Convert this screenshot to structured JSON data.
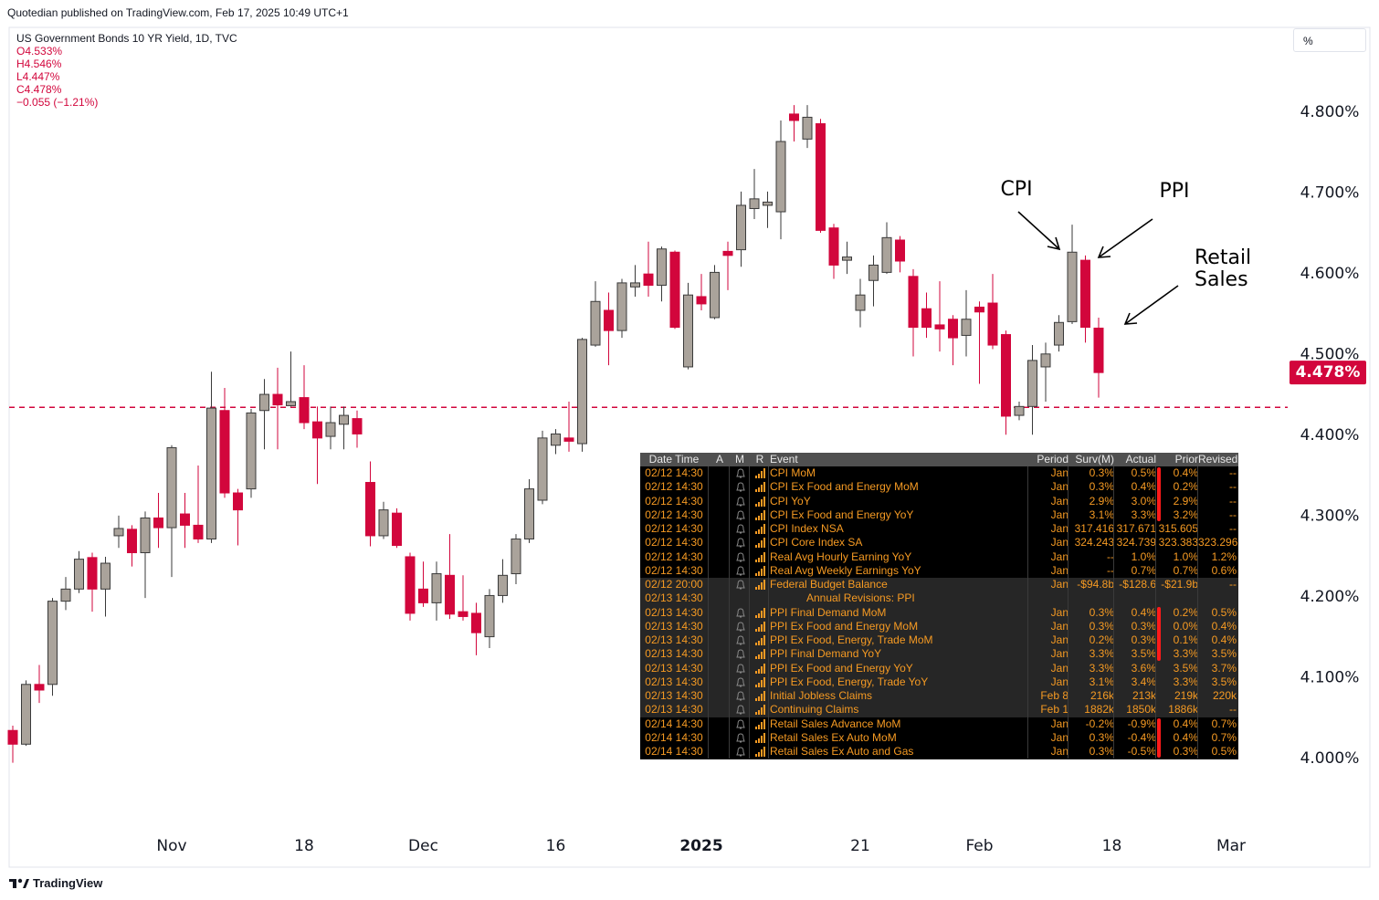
{
  "header": {
    "published": "Quotedian published on TradingView.com, Feb 17, 2025 10:49 UTC+1",
    "symbol": "US Government Bonds 10 YR Yield, 1D, TVC",
    "legend_values": [
      "O4.533%",
      "H4.546%",
      "L4.447%",
      "C4.478%",
      "−0.055 (−1.21%)"
    ],
    "scale_button": "%",
    "footer": "TradingView"
  },
  "chart_data": {
    "type": "candlestick",
    "up_color": "#aaa39b",
    "up_border": "#3a3a3a",
    "down_color": "#d2063c",
    "categories": [
      null,
      null,
      null,
      null,
      null,
      null,
      null,
      null,
      null,
      null,
      null,
      null,
      "Nov",
      null,
      null,
      null,
      null,
      null,
      null,
      null,
      null,
      null,
      "18",
      null,
      null,
      null,
      null,
      null,
      null,
      null,
      null,
      "Dec",
      null,
      null,
      null,
      null,
      null,
      null,
      null,
      null,
      null,
      "16",
      null,
      null,
      null,
      null,
      null,
      null,
      null,
      null,
      null,
      null,
      "2025",
      null,
      null,
      null,
      null,
      null,
      null,
      null,
      null,
      null,
      null,
      null,
      "21",
      null,
      null,
      null,
      null,
      null,
      null,
      null,
      null,
      "Feb",
      null,
      null,
      null,
      null,
      null,
      null,
      null,
      null,
      null,
      "18",
      null,
      null,
      null,
      null,
      null,
      null,
      null,
      null,
      "Mar"
    ],
    "open": [
      4.035,
      4.018,
      4.092,
      4.092,
      4.195,
      4.21,
      4.249,
      4.21,
      4.276,
      4.284,
      4.255,
      4.298,
      4.286,
      4.303,
      4.289,
      4.272,
      4.431,
      4.329,
      4.334,
      4.431,
      4.451,
      4.437,
      4.447,
      4.417,
      4.399,
      4.414,
      4.421,
      4.342,
      4.276,
      4.304,
      4.25,
      4.21,
      4.193,
      4.227,
      4.182,
      4.18,
      4.151,
      4.202,
      4.229,
      4.272,
      4.32,
      4.388,
      4.397,
      4.39,
      4.512,
      4.555,
      4.53,
      4.584,
      4.6,
      4.586,
      4.627,
      4.485,
      4.572,
      4.546,
      4.628,
      4.63,
      4.681,
      4.685,
      4.677,
      4.798,
      4.767,
      4.786,
      4.657,
      4.617,
      4.555,
      4.592,
      4.602,
      4.642,
      4.597,
      4.557,
      4.537,
      4.544,
      4.524,
      4.559,
      4.564,
      4.525,
      4.425,
      4.436,
      4.485,
      4.512,
      4.541,
      4.617,
      4.533,
      null,
      null,
      null,
      null,
      null,
      null,
      null,
      null,
      null,
      null
    ],
    "high": [
      4.041,
      4.097,
      4.116,
      4.199,
      4.225,
      4.257,
      4.255,
      4.25,
      4.301,
      4.289,
      4.306,
      4.329,
      4.388,
      4.329,
      4.363,
      4.479,
      4.459,
      4.334,
      4.433,
      4.47,
      4.484,
      4.504,
      4.487,
      4.436,
      4.436,
      4.436,
      4.431,
      4.368,
      4.318,
      4.31,
      4.255,
      4.244,
      4.244,
      4.278,
      4.227,
      4.193,
      4.21,
      4.247,
      4.278,
      4.346,
      4.406,
      4.408,
      4.442,
      4.521,
      4.591,
      4.577,
      4.594,
      4.611,
      4.64,
      4.634,
      4.629,
      4.589,
      4.6,
      4.611,
      4.64,
      4.702,
      4.73,
      4.702,
      4.79,
      4.809,
      4.809,
      4.792,
      4.662,
      4.64,
      4.594,
      4.623,
      4.664,
      4.647,
      4.606,
      4.577,
      4.591,
      4.549,
      4.58,
      4.566,
      4.6,
      4.53,
      4.442,
      4.512,
      4.515,
      4.549,
      4.661,
      4.623,
      4.546,
      null,
      null,
      null,
      null,
      null,
      null,
      null,
      null,
      null,
      null
    ],
    "low": [
      3.995,
      4.016,
      4.069,
      4.078,
      4.184,
      4.205,
      4.182,
      4.176,
      4.261,
      4.238,
      4.199,
      4.261,
      4.225,
      4.261,
      4.267,
      4.267,
      4.323,
      4.264,
      4.323,
      4.383,
      4.383,
      4.436,
      4.408,
      4.34,
      4.383,
      4.383,
      4.385,
      4.263,
      4.272,
      4.261,
      4.171,
      4.188,
      4.171,
      4.173,
      4.171,
      4.128,
      4.137,
      4.193,
      4.216,
      4.267,
      4.315,
      4.377,
      4.38,
      4.38,
      4.51,
      4.487,
      4.521,
      4.572,
      4.572,
      4.566,
      4.532,
      4.482,
      4.555,
      4.544,
      4.58,
      4.609,
      4.668,
      4.657,
      4.643,
      4.764,
      4.756,
      4.651,
      4.594,
      4.6,
      4.534,
      4.56,
      4.6,
      4.602,
      4.498,
      4.521,
      4.504,
      4.487,
      4.498,
      4.464,
      4.507,
      4.401,
      4.419,
      4.401,
      4.442,
      4.504,
      4.538,
      4.515,
      4.447,
      null,
      null,
      null,
      null,
      null,
      null,
      null,
      null,
      null,
      null
    ],
    "close": [
      4.018,
      4.092,
      4.085,
      4.195,
      4.21,
      4.247,
      4.21,
      4.242,
      4.285,
      4.255,
      4.298,
      4.286,
      4.385,
      4.289,
      4.272,
      4.434,
      4.329,
      4.308,
      4.428,
      4.451,
      4.438,
      4.442,
      4.416,
      4.397,
      4.416,
      4.425,
      4.402,
      4.276,
      4.308,
      4.264,
      4.18,
      4.193,
      4.229,
      4.179,
      4.176,
      4.156,
      4.202,
      4.227,
      4.272,
      4.334,
      4.397,
      4.402,
      4.393,
      4.519,
      4.566,
      4.53,
      4.589,
      4.589,
      4.586,
      4.631,
      4.534,
      4.574,
      4.563,
      4.602,
      4.623,
      4.685,
      4.693,
      4.689,
      4.764,
      4.79,
      4.794,
      4.654,
      4.611,
      4.621,
      4.574,
      4.611,
      4.645,
      4.616,
      4.534,
      4.534,
      4.532,
      4.521,
      4.544,
      4.553,
      4.512,
      4.424,
      4.436,
      4.493,
      4.501,
      4.54,
      4.627,
      4.534,
      4.478,
      null,
      null,
      null,
      null,
      null,
      null,
      null,
      null,
      null,
      null
    ],
    "ylim": [
      3.911,
      4.877
    ],
    "yticks": [
      {
        "value": 4.0,
        "label": "4.000%"
      },
      {
        "value": 4.1,
        "label": "4.100%"
      },
      {
        "value": 4.2,
        "label": "4.200%"
      },
      {
        "value": 4.3,
        "label": "4.300%"
      },
      {
        "value": 4.4,
        "label": "4.400%"
      },
      {
        "value": 4.5,
        "label": "4.500%"
      },
      {
        "value": 4.6,
        "label": "4.600%"
      },
      {
        "value": 4.7,
        "label": "4.700%"
      },
      {
        "value": 4.8,
        "label": "4.800%"
      }
    ],
    "grid": false,
    "reference_line": {
      "value": 4.435,
      "color": "#d2063c"
    },
    "last_price": {
      "value": 4.478,
      "label": "4.478%"
    }
  },
  "annotations": [
    "CPI",
    "PPI",
    "Retail Sales"
  ],
  "table": {
    "columns": [
      "Date Time",
      "A",
      "M",
      "R",
      "Event",
      "Period",
      "Surv(M)",
      "Actual",
      "Prior",
      "Revised"
    ],
    "rows": [
      {
        "time": "02/12 14:30",
        "event": "CPI MoM",
        "period": "Jan",
        "survey": "0.3%",
        "actual": "0.5%",
        "prior": "0.4%",
        "revised": "--"
      },
      {
        "time": "02/12 14:30",
        "event": "CPI Ex Food and Energy MoM",
        "period": "Jan",
        "survey": "0.3%",
        "actual": "0.4%",
        "prior": "0.2%",
        "revised": "--"
      },
      {
        "time": "02/12 14:30",
        "event": "CPI YoY",
        "period": "Jan",
        "survey": "2.9%",
        "actual": "3.0%",
        "prior": "2.9%",
        "revised": "--"
      },
      {
        "time": "02/12 14:30",
        "event": "CPI Ex Food and Energy YoY",
        "period": "Jan",
        "survey": "3.1%",
        "actual": "3.3%",
        "prior": "3.2%",
        "revised": "--"
      },
      {
        "time": "02/12 14:30",
        "event": "CPI Index NSA",
        "period": "Jan",
        "survey": "317.416",
        "actual": "317.671",
        "prior": "315.605",
        "revised": "--"
      },
      {
        "time": "02/12 14:30",
        "event": "CPI Core Index SA",
        "period": "Jan",
        "survey": "324.243",
        "actual": "324.739",
        "prior": "323.383",
        "revised": "323.296"
      },
      {
        "time": "02/12 14:30",
        "event": "Real Avg Hourly Earning YoY",
        "period": "Jan",
        "survey": "--",
        "actual": "1.0%",
        "prior": "1.0%",
        "revised": "1.2%"
      },
      {
        "time": "02/12 14:30",
        "event": "Real Avg Weekly Earnings YoY",
        "period": "Jan",
        "survey": "--",
        "actual": "0.7%",
        "prior": "0.7%",
        "revised": "0.6%"
      },
      {
        "time": "02/12 20:00",
        "event": "Federal Budget Balance",
        "period": "Jan",
        "survey": "-$94.8b",
        "actual": "-$128.6",
        "prior": "-$21.9b",
        "revised": "--"
      },
      {
        "time": "02/13 14:30",
        "event": "Annual Revisions: PPI"
      },
      {
        "time": "02/13 14:30",
        "event": "PPI Final Demand MoM",
        "period": "Jan",
        "survey": "0.3%",
        "actual": "0.4%",
        "prior": "0.2%",
        "revised": "0.5%"
      },
      {
        "time": "02/13 14:30",
        "event": "PPI Ex Food and Energy MoM",
        "period": "Jan",
        "survey": "0.3%",
        "actual": "0.3%",
        "prior": "0.0%",
        "revised": "0.4%"
      },
      {
        "time": "02/13 14:30",
        "event": "PPI Ex Food, Energy, Trade MoM",
        "period": "Jan",
        "survey": "0.2%",
        "actual": "0.3%",
        "prior": "0.1%",
        "revised": "0.4%"
      },
      {
        "time": "02/13 14:30",
        "event": "PPI Final Demand YoY",
        "period": "Jan",
        "survey": "3.3%",
        "actual": "3.5%",
        "prior": "3.3%",
        "revised": "3.5%"
      },
      {
        "time": "02/13 14:30",
        "event": "PPI Ex Food and Energy YoY",
        "period": "Jan",
        "survey": "3.3%",
        "actual": "3.6%",
        "prior": "3.5%",
        "revised": "3.7%"
      },
      {
        "time": "02/13 14:30",
        "event": "PPI Ex Food, Energy, Trade YoY",
        "period": "Jan",
        "survey": "3.1%",
        "actual": "3.4%",
        "prior": "3.3%",
        "revised": "3.5%"
      },
      {
        "time": "02/13 14:30",
        "event": "Initial Jobless Claims",
        "period": "Feb 8",
        "survey": "216k",
        "actual": "213k",
        "prior": "219k",
        "revised": "220k"
      },
      {
        "time": "02/13 14:30",
        "event": "Continuing Claims",
        "period": "Feb 1",
        "survey": "1882k",
        "actual": "1850k",
        "prior": "1886k",
        "revised": "--"
      },
      {
        "time": "02/14 14:30",
        "event": "Retail Sales Advance MoM",
        "period": "Jan",
        "survey": "-0.2%",
        "actual": "-0.9%",
        "prior": "0.4%",
        "revised": "0.7%"
      },
      {
        "time": "02/14 14:30",
        "event": "Retail Sales Ex Auto MoM",
        "period": "Jan",
        "survey": "0.3%",
        "actual": "-0.4%",
        "prior": "0.4%",
        "revised": "0.7%"
      },
      {
        "time": "02/14 14:30",
        "event": "Retail Sales Ex Auto and Gas",
        "period": "Jan",
        "survey": "0.3%",
        "actual": "-0.5%",
        "prior": "0.3%",
        "revised": "0.5%"
      }
    ]
  }
}
